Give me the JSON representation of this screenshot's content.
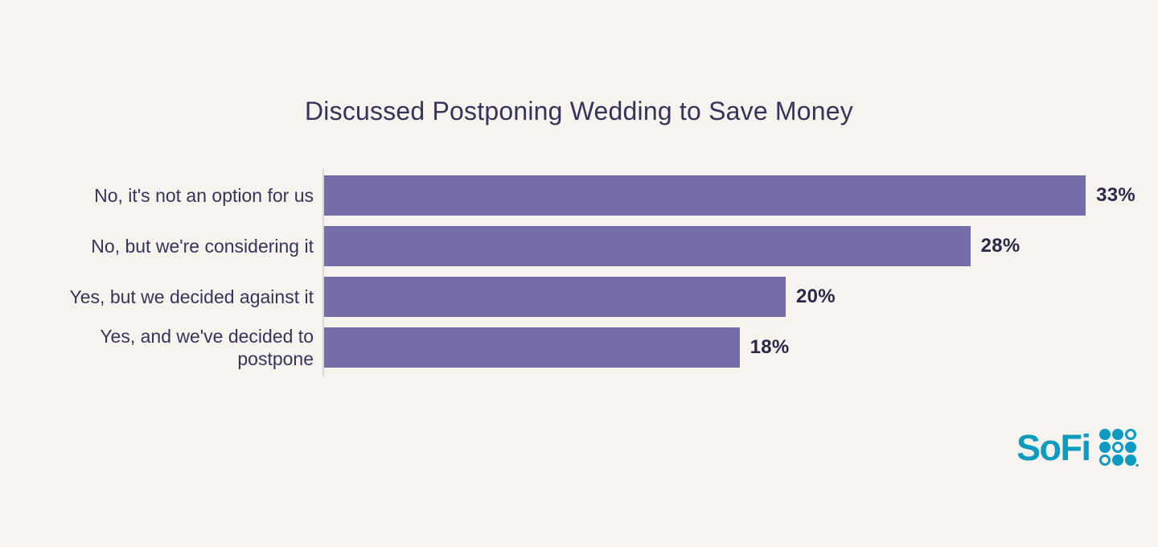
{
  "theme": {
    "background": "#F7F4EF",
    "text_color": "#39325B",
    "value_color": "#2C284A",
    "axis_color": "#D9D6DE",
    "bar_color": "#756DA9",
    "logo_color": "#0F9BC0"
  },
  "chart_data": {
    "type": "bar",
    "orientation": "horizontal",
    "title": "Discussed Postponing Wedding to Save Money",
    "categories": [
      "No, it's not an option for us",
      "No, but we're considering it",
      "Yes, but we decided against it",
      "Yes, and we've decided to postpone"
    ],
    "values": [
      33,
      28,
      20,
      18
    ],
    "value_labels": [
      "33%",
      "28%",
      "20%",
      "18%"
    ],
    "xlim": [
      0,
      35
    ],
    "grid": false,
    "legend": "none",
    "rows": [
      {
        "label": "No, it's not an option for us",
        "value": 33,
        "value_label": "33%"
      },
      {
        "label": "No, but we're considering it",
        "value": 28,
        "value_label": "28%"
      },
      {
        "label": "Yes, but we decided against it",
        "value": 20,
        "value_label": "20%"
      },
      {
        "label": "Yes, and we've decided to\npostpone",
        "value": 18,
        "value_label": "18%"
      }
    ]
  },
  "branding": {
    "logo_text": "SoFi"
  }
}
